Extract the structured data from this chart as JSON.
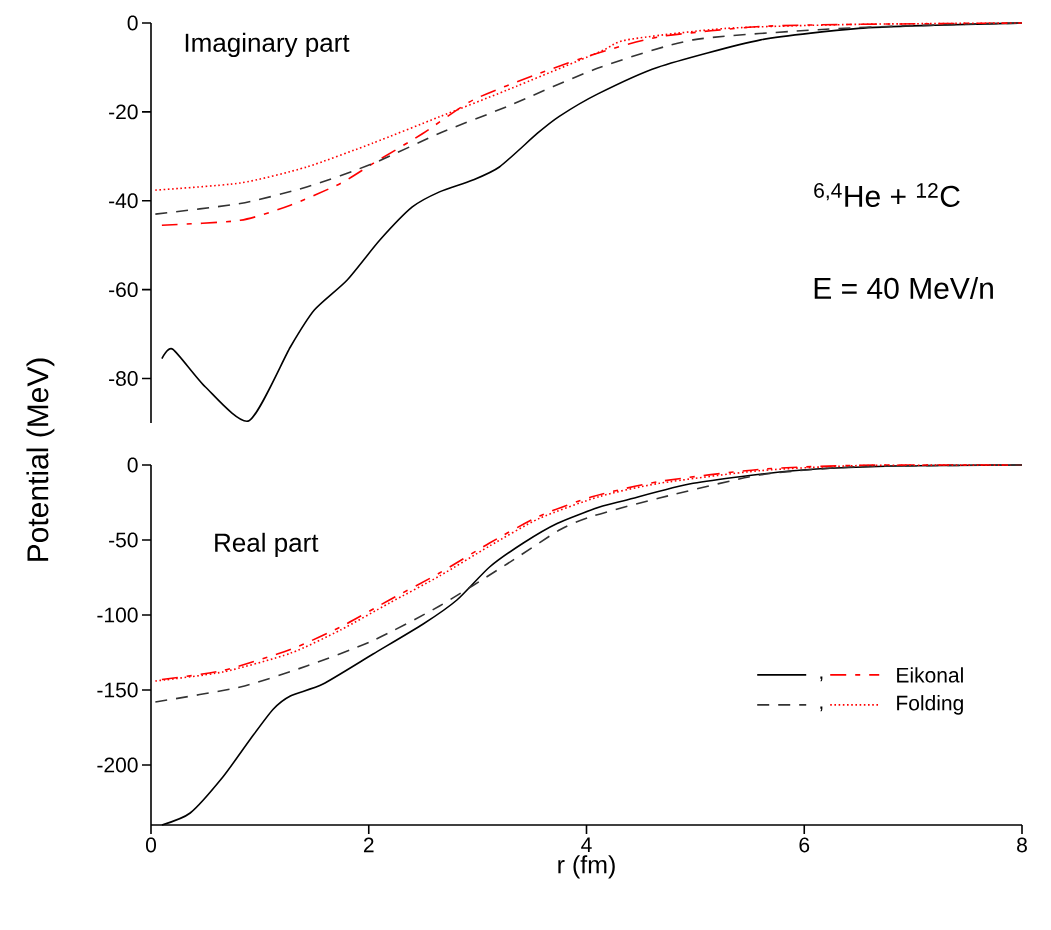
{
  "chart_data": [
    {
      "type": "line",
      "xlim": [
        0,
        8
      ],
      "ylim": [
        -90,
        0
      ],
      "yticks": [
        0,
        -20,
        -40,
        -60,
        -80
      ],
      "tick_labels": "y",
      "annotations": [
        "Imaginary part",
        "$^{6,4}$He + $^{12}$C",
        "E = 40 MeV/n"
      ],
      "series": [
        {
          "color": "#000000",
          "line_style": "solid",
          "x": [
            0.1,
            0.2,
            0.5,
            0.9,
            1.28,
            1.5,
            1.8,
            2.1,
            2.4,
            2.65,
            2.95,
            3.2,
            3.55,
            3.75,
            4.1,
            4.65,
            5.6,
            6.5,
            7.2,
            8
          ],
          "values": [
            -75.5,
            -73.4,
            -81.9,
            -89.5,
            -72.9,
            -64.6,
            -57.9,
            -48.9,
            -41.4,
            -38,
            -35.4,
            -32.4,
            -24.8,
            -21,
            -16,
            -10,
            -3.8,
            -1.2,
            -0.5,
            0
          ]
        },
        {
          "color": "#ff0000",
          "line_style": "dashdot",
          "x": [
            0.1,
            0.82,
            1.28,
            1.74,
            2.04,
            2.5,
            2.96,
            3.57,
            4.1,
            4.67,
            5.59,
            6.5,
            8
          ],
          "values": [
            -45.5,
            -44.4,
            -41,
            -36.1,
            -31.6,
            -24.8,
            -17.3,
            -11.3,
            -6.8,
            -3.1,
            -0.8,
            -0.3,
            0
          ]
        },
        {
          "color": "#333333",
          "line_style": "dashed",
          "x": [
            0.04,
            0.82,
            1.43,
            2.04,
            2.65,
            3.27,
            4.1,
            4.98,
            6.2,
            7,
            8
          ],
          "values": [
            -43,
            -40.6,
            -36.9,
            -31.6,
            -24.8,
            -18.8,
            -10.2,
            -3.8,
            -1.4,
            -0.6,
            0
          ]
        },
        {
          "color": "#ff0000",
          "line_style": "dotted",
          "x": [
            0.04,
            0.82,
            1.43,
            2.04,
            2.65,
            3.27,
            4.12,
            4.37,
            5.29,
            6.5,
            8
          ],
          "values": [
            -37.6,
            -36,
            -32.4,
            -27,
            -21.1,
            -15.1,
            -6.5,
            -3.8,
            -1.2,
            -0.3,
            0
          ]
        }
      ]
    },
    {
      "type": "line",
      "xlim": [
        0,
        8
      ],
      "ylim": [
        -240,
        0
      ],
      "xticks": [
        0,
        2,
        4,
        6,
        8
      ],
      "yticks": [
        0,
        -50,
        -100,
        -150,
        -200
      ],
      "xlabel": "r (fm)",
      "ylabel": "Potential  (MeV)",
      "legend": "right",
      "annotations": [
        "Real part"
      ],
      "series": [
        {
          "name": ",",
          "color": "#000000",
          "line_style": "solid",
          "x": [
            0.1,
            0.36,
            0.66,
            0.91,
            1.12,
            1.28,
            1.58,
            2.04,
            2.5,
            2.81,
            3.11,
            3.42,
            3.73,
            4.12,
            4.37,
            4.98,
            5.9,
            6.82,
            8
          ],
          "values": [
            -240,
            -232,
            -208,
            -183,
            -163,
            -154,
            -146,
            -126,
            -106,
            -90,
            -68,
            -52,
            -39,
            -28,
            -23.3,
            -12.2,
            -3.8,
            -0.7,
            0
          ]
        },
        {
          "name": "Eikonal",
          "color": "#ff0000",
          "line_style": "dashdot",
          "x": [
            0.1,
            0.66,
            1.28,
            1.74,
            2.19,
            2.65,
            3.11,
            3.57,
            4.06,
            4.67,
            5.59,
            6.51,
            8
          ],
          "values": [
            -143,
            -137,
            -123,
            -108,
            -90,
            -72,
            -52,
            -34,
            -21,
            -11,
            -2.9,
            -0.2,
            0
          ]
        },
        {
          "name": ",",
          "color": "#333333",
          "line_style": "dashed",
          "x": [
            0.04,
            0.82,
            1.43,
            2.04,
            2.65,
            3.27,
            3.76,
            4.06,
            4.67,
            5.59,
            6.51,
            8
          ],
          "values": [
            -158,
            -148,
            -134,
            -117,
            -94,
            -66,
            -43,
            -34,
            -22,
            -6.7,
            -1.1,
            0
          ]
        },
        {
          "name": "Folding",
          "color": "#ff0000",
          "line_style": "dotted",
          "x": [
            0.04,
            0.66,
            1.28,
            1.74,
            2.19,
            2.65,
            3.11,
            3.57,
            4.12,
            4.67,
            5.59,
            6.51,
            7.9
          ],
          "values": [
            -144,
            -138,
            -125.5,
            -110,
            -92,
            -74,
            -54,
            -35.5,
            -21,
            -12.2,
            -3.8,
            -0.4,
            -0.1
          ]
        }
      ]
    }
  ]
}
